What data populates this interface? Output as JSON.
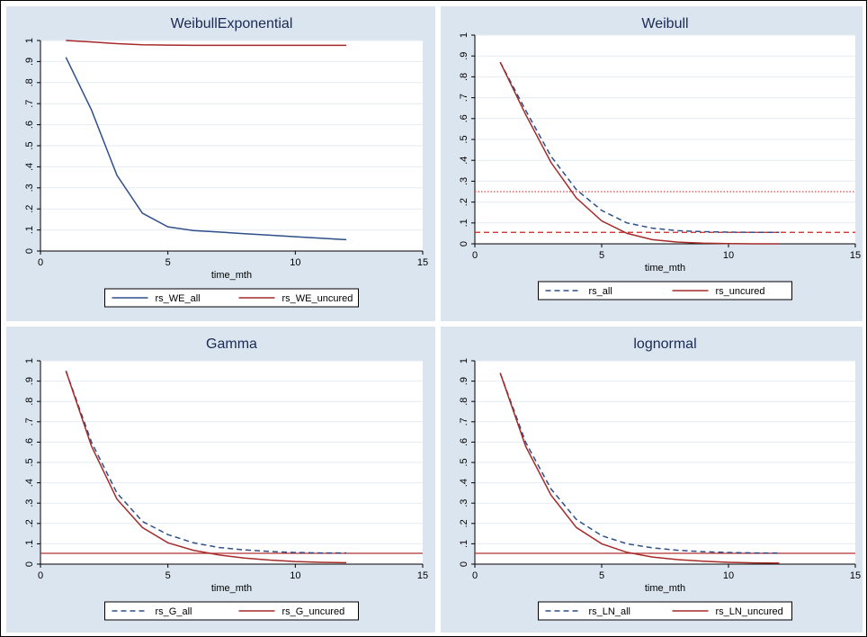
{
  "chart_data": [
    {
      "type": "line",
      "title": "WeibullExponential",
      "xlabel": "time_mth",
      "ylabel": "",
      "xlim": [
        0,
        15
      ],
      "ylim": [
        0,
        1
      ],
      "xticks": [
        "0",
        "5",
        "10",
        "15"
      ],
      "yticks": [
        "0",
        ".1",
        ".2",
        ".3",
        ".4",
        ".5",
        ".6",
        ".7",
        ".8",
        ".9",
        "1"
      ],
      "grid": true,
      "legend": "bottom",
      "series": [
        {
          "name": "rs_WE_all",
          "color": "#2e4f88",
          "dash": "solid",
          "x": [
            1,
            2,
            3,
            4,
            5,
            6,
            7,
            8,
            9,
            10,
            11,
            12
          ],
          "y": [
            0.92,
            0.67,
            0.36,
            0.18,
            0.115,
            0.097,
            0.09,
            0.082,
            0.075,
            0.068,
            0.061,
            0.054
          ]
        },
        {
          "name": "rs_WE_uncured",
          "color": "#a52a2a",
          "dash": "solid",
          "x": [
            1,
            2,
            3,
            4,
            5,
            6,
            7,
            8,
            9,
            10,
            11,
            12
          ],
          "y": [
            1.0,
            0.993,
            0.985,
            0.98,
            0.978,
            0.977,
            0.977,
            0.977,
            0.977,
            0.977,
            0.977,
            0.977
          ]
        }
      ],
      "hlines": []
    },
    {
      "type": "line",
      "title": "Weibull",
      "xlabel": "time_mth",
      "ylabel": "",
      "xlim": [
        0,
        15
      ],
      "ylim": [
        0,
        1
      ],
      "xticks": [
        "0",
        "5",
        "10",
        "15"
      ],
      "yticks": [
        "0",
        ".1",
        ".2",
        ".3",
        ".4",
        ".5",
        ".6",
        ".7",
        ".8",
        ".9",
        "1"
      ],
      "grid": true,
      "legend": "bottom",
      "series": [
        {
          "name": "rs_all",
          "color": "#2e4f88",
          "dash": "dashed",
          "x": [
            1,
            2,
            3,
            4,
            5,
            6,
            7,
            8,
            9,
            10,
            11,
            12
          ],
          "y": [
            0.87,
            0.64,
            0.42,
            0.26,
            0.16,
            0.1,
            0.075,
            0.063,
            0.058,
            0.056,
            0.055,
            0.055
          ]
        },
        {
          "name": "rs_uncured",
          "color": "#a52a2a",
          "dash": "solid",
          "x": [
            1,
            2,
            3,
            4,
            5,
            6,
            7,
            8,
            9,
            10,
            11,
            12
          ],
          "y": [
            0.87,
            0.62,
            0.39,
            0.22,
            0.11,
            0.05,
            0.02,
            0.008,
            0.003,
            0.001,
            0.0,
            0.0
          ]
        }
      ],
      "hlines": [
        {
          "y": 0.25,
          "color": "#e04040",
          "dash": "dotted"
        },
        {
          "y": 0.055,
          "color": "#cc2020",
          "dash": "dashed"
        }
      ]
    },
    {
      "type": "line",
      "title": "Gamma",
      "xlabel": "time_mth",
      "ylabel": "",
      "xlim": [
        0,
        15
      ],
      "ylim": [
        0,
        1
      ],
      "xticks": [
        "0",
        "5",
        "10",
        "15"
      ],
      "yticks": [
        "0",
        ".1",
        ".2",
        ".3",
        ".4",
        ".5",
        ".6",
        ".7",
        ".8",
        ".9",
        "1"
      ],
      "grid": true,
      "legend": "bottom",
      "series": [
        {
          "name": "rs_G_all",
          "color": "#2e4f88",
          "dash": "dashed",
          "x": [
            1,
            2,
            3,
            4,
            5,
            6,
            7,
            8,
            9,
            10,
            11,
            12
          ],
          "y": [
            0.95,
            0.6,
            0.35,
            0.21,
            0.145,
            0.105,
            0.082,
            0.07,
            0.062,
            0.057,
            0.055,
            0.055
          ]
        },
        {
          "name": "rs_G_uncured",
          "color": "#a52a2a",
          "dash": "solid",
          "x": [
            1,
            2,
            3,
            4,
            5,
            6,
            7,
            8,
            9,
            10,
            11,
            12
          ],
          "y": [
            0.95,
            0.58,
            0.32,
            0.18,
            0.105,
            0.068,
            0.045,
            0.03,
            0.02,
            0.013,
            0.009,
            0.007
          ]
        }
      ],
      "hlines": [
        {
          "y": 0.053,
          "color": "#b03030",
          "dash": "solid"
        }
      ]
    },
    {
      "type": "line",
      "title": "lognormal",
      "xlabel": "time_mth",
      "ylabel": "",
      "xlim": [
        0,
        15
      ],
      "ylim": [
        0,
        1
      ],
      "xticks": [
        "0",
        "5",
        "10",
        "15"
      ],
      "yticks": [
        "0",
        ".1",
        ".2",
        ".3",
        ".4",
        ".5",
        ".6",
        ".7",
        ".8",
        ".9",
        "1"
      ],
      "grid": true,
      "legend": "bottom",
      "series": [
        {
          "name": "rs_LN_all",
          "color": "#2e4f88",
          "dash": "dashed",
          "x": [
            1,
            2,
            3,
            4,
            5,
            6,
            7,
            8,
            9,
            10,
            11,
            12
          ],
          "y": [
            0.94,
            0.6,
            0.37,
            0.22,
            0.14,
            0.1,
            0.08,
            0.068,
            0.061,
            0.057,
            0.055,
            0.054
          ]
        },
        {
          "name": "rs_LN_uncured",
          "color": "#a52a2a",
          "dash": "solid",
          "x": [
            1,
            2,
            3,
            4,
            5,
            6,
            7,
            8,
            9,
            10,
            11,
            12
          ],
          "y": [
            0.94,
            0.58,
            0.34,
            0.18,
            0.1,
            0.058,
            0.035,
            0.022,
            0.014,
            0.009,
            0.006,
            0.005
          ]
        }
      ],
      "hlines": [
        {
          "y": 0.053,
          "color": "#b03030",
          "dash": "solid"
        }
      ]
    }
  ]
}
